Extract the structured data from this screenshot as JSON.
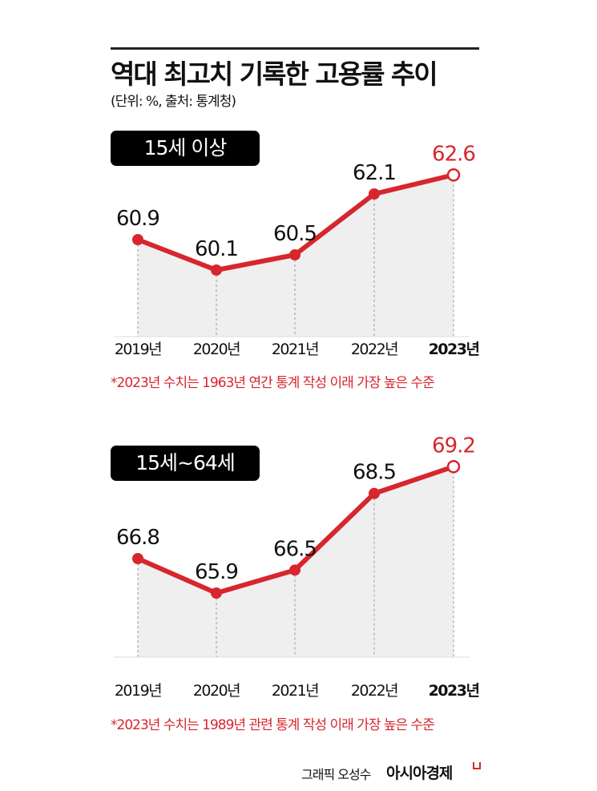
{
  "title": "역대 최고치 기록한 고용률 추이",
  "subtitle": "(단위: %, 출처: 통계청)",
  "accent_color": "#d7262d",
  "fill_color": "#efefef",
  "credit": "그래픽 오성수",
  "brand": "아시아경제",
  "chart_data": [
    {
      "type": "line",
      "title": "15세 이상",
      "categories": [
        "2019년",
        "2020년",
        "2021년",
        "2022년",
        "2023년"
      ],
      "values": [
        60.9,
        60.1,
        60.5,
        62.1,
        62.6
      ],
      "data_labels": [
        "60.9",
        "60.1",
        "60.5",
        "62.1",
        "62.6"
      ],
      "highlight_last": true,
      "note": "*2023년 수치는 1963년 연간 통계 작성 이래 가장 높은 수준"
    },
    {
      "type": "line",
      "title": "15세~64세",
      "categories": [
        "2019년",
        "2020년",
        "2021년",
        "2022년",
        "2023년"
      ],
      "values": [
        66.8,
        65.9,
        66.5,
        68.5,
        69.2
      ],
      "data_labels": [
        "66.8",
        "65.9",
        "66.5",
        "68.5",
        "69.2"
      ],
      "highlight_last": true,
      "note": "*2023년 수치는 1989년 관련 통계 작성 이래 가장 높은 수준"
    }
  ]
}
